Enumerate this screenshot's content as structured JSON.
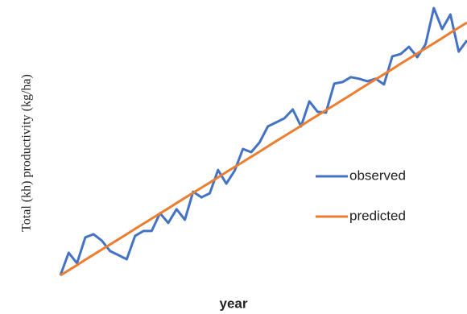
{
  "chart_data": {
    "type": "line",
    "xlabel": "year",
    "ylabel": "Total (kh) productivity (kg/ha)",
    "categories": [
      null,
      null,
      null,
      null,
      null,
      null,
      null,
      null,
      null,
      null,
      null,
      null,
      null,
      null,
      null,
      null,
      null,
      null,
      null,
      null,
      null,
      null,
      null,
      null,
      null,
      null,
      null,
      null,
      null,
      null,
      null,
      null,
      null,
      null,
      null,
      null,
      null,
      null,
      null,
      null,
      null,
      null,
      null,
      null,
      null,
      null,
      null,
      null,
      null,
      null
    ],
    "series": [
      {
        "name": "observed",
        "color": "#4472c4",
        "values": [
          0,
          8.4,
          4.5,
          14.1,
          15.3,
          12.9,
          9.0,
          7.5,
          6.0,
          14.7,
          16.5,
          16.5,
          23.1,
          19.5,
          24.6,
          20.7,
          31.1,
          29.0,
          30.5,
          39.2,
          34.1,
          38.9,
          47.0,
          45.8,
          49.4,
          55.4,
          56.9,
          58.4,
          61.7,
          55.4,
          64.7,
          60.8,
          60.5,
          71.3,
          71.9,
          73.7,
          73.1,
          72.2,
          73.1,
          71.0,
          81.4,
          82.3,
          85.0,
          81.1,
          85.9,
          99.4,
          91.6,
          97.0,
          83.2,
          87.4
        ]
      },
      {
        "name": "predicted",
        "color": "#ed7d31",
        "values": [
          0,
          1.9,
          3.8,
          5.8,
          7.7,
          9.6,
          11.5,
          13.4,
          15.3,
          17.3,
          19.2,
          21.1,
          23.0,
          24.9,
          26.9,
          28.8,
          30.7,
          32.6,
          34.5,
          36.4,
          38.4,
          40.3,
          42.2,
          44.1,
          46.0,
          48.0,
          49.9,
          51.8,
          53.7,
          55.6,
          57.6,
          59.5,
          61.4,
          63.3,
          65.2,
          67.1,
          69.1,
          71.0,
          72.9,
          74.8,
          76.7,
          78.7,
          80.6,
          82.5,
          84.4,
          86.3,
          88.2,
          90.2,
          92.1,
          94.0
        ]
      }
    ],
    "ylim": [
      0,
      100
    ],
    "legend": "right"
  }
}
